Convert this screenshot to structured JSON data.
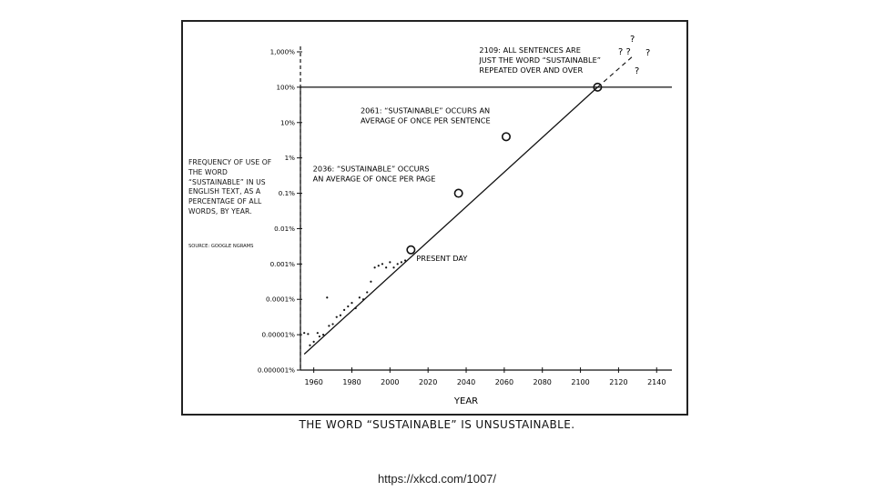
{
  "caption": "THE WORD “SUSTAINABLE” IS UNSUSTAINABLE.",
  "url": "https://xkcd.com/1007/",
  "chart_data": {
    "type": "line",
    "xlabel": "YEAR",
    "ylabel": "FREQUENCY OF USE OF THE WORD “SUSTAINABLE” IN US ENGLISH TEXT, AS A PERCENTAGE OF ALL WORDS, BY YEAR.",
    "source": "SOURCE: GOOGLE NGRAMS",
    "scale": {
      "y": "log",
      "x": "linear"
    },
    "xlim": [
      1953,
      2148
    ],
    "ylim_log10": [
      -6,
      3
    ],
    "x_ticks": [
      1960,
      1980,
      2000,
      2020,
      2040,
      2060,
      2080,
      2100,
      2120,
      2140
    ],
    "y_ticks": [
      {
        "label": "0.000001%",
        "log10": -6
      },
      {
        "label": "0.00001%",
        "log10": -5
      },
      {
        "label": "0.0001%",
        "log10": -4
      },
      {
        "label": "0.001%",
        "log10": -3
      },
      {
        "label": "0.01%",
        "log10": -2
      },
      {
        "label": "0.1%",
        "log10": -1
      },
      {
        "label": "1%",
        "log10": 0
      },
      {
        "label": "10%",
        "log10": 1
      },
      {
        "label": "100%",
        "log10": 2
      },
      {
        "label": "1,000%",
        "log10": 3
      }
    ],
    "reference_line": {
      "label": "100%",
      "log10": 2
    },
    "trend_line": [
      {
        "x": 1955,
        "log10": -5.55
      },
      {
        "x": 2109,
        "log10": 2.0
      }
    ],
    "extrapolation": [
      {
        "x": 2109,
        "log10": 2.0
      },
      {
        "x": 2128,
        "log10": 2.9
      }
    ],
    "scatter": [
      {
        "x": 1955,
        "log10": -4.95
      },
      {
        "x": 1957,
        "log10": -4.98
      },
      {
        "x": 1958,
        "log10": -5.3
      },
      {
        "x": 1960,
        "log10": -5.2
      },
      {
        "x": 1962,
        "log10": -4.95
      },
      {
        "x": 1963,
        "log10": -5.05
      },
      {
        "x": 1965,
        "log10": -5.0
      },
      {
        "x": 1967,
        "log10": -3.95
      },
      {
        "x": 1968,
        "log10": -4.75
      },
      {
        "x": 1970,
        "log10": -4.7
      },
      {
        "x": 1972,
        "log10": -4.5
      },
      {
        "x": 1974,
        "log10": -4.45
      },
      {
        "x": 1976,
        "log10": -4.3
      },
      {
        "x": 1978,
        "log10": -4.2
      },
      {
        "x": 1980,
        "log10": -4.1
      },
      {
        "x": 1982,
        "log10": -4.25
      },
      {
        "x": 1984,
        "log10": -3.95
      },
      {
        "x": 1986,
        "log10": -4.0
      },
      {
        "x": 1988,
        "log10": -3.8
      },
      {
        "x": 1990,
        "log10": -3.5
      },
      {
        "x": 1992,
        "log10": -3.1
      },
      {
        "x": 1994,
        "log10": -3.05
      },
      {
        "x": 1996,
        "log10": -3.0
      },
      {
        "x": 1998,
        "log10": -3.1
      },
      {
        "x": 2000,
        "log10": -2.95
      },
      {
        "x": 2002,
        "log10": -3.1
      },
      {
        "x": 2004,
        "log10": -3.0
      },
      {
        "x": 2006,
        "log10": -2.95
      },
      {
        "x": 2008,
        "log10": -2.9
      }
    ],
    "milestones": [
      {
        "x": 2011,
        "log10": -2.6,
        "text": [
          "PRESENT DAY"
        ]
      },
      {
        "x": 2036,
        "log10": -1.0,
        "year": "2036:",
        "text": [
          "2036: “SUSTAINABLE” OCCURS",
          "AN AVERAGE OF ONCE PER PAGE"
        ]
      },
      {
        "x": 2061,
        "log10": 0.6,
        "year": "2061:",
        "text": [
          "2061: “SUSTAINABLE” OCCURS AN",
          "AVERAGE OF ONCE PER SENTENCE"
        ]
      },
      {
        "x": 2109,
        "log10": 2.0,
        "year": "2109:",
        "text": [
          "2109: ALL SENTENCES ARE",
          "JUST THE WORD “SUSTAINABLE”",
          "REPEATED OVER AND OVER"
        ]
      }
    ],
    "question_marks": [
      "?",
      "? ?",
      "?",
      "?"
    ]
  }
}
